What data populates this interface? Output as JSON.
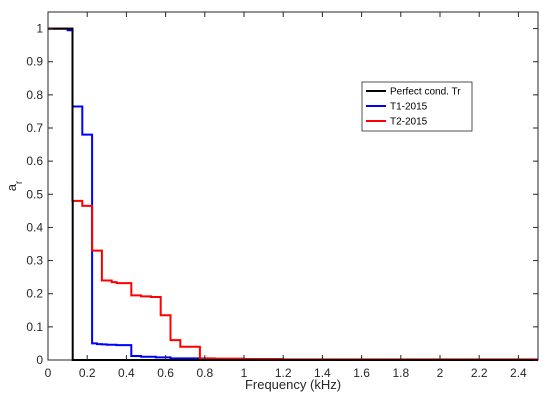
{
  "chart_data": {
    "type": "line",
    "step": true,
    "xlabel": "Frequency (kHz)",
    "ylabel_main": "a",
    "ylabel_sub": "r",
    "xlim": [
      0,
      2.5
    ],
    "ylim": [
      0,
      1.05
    ],
    "xticks": [
      0,
      0.2,
      0.4,
      0.6,
      0.8,
      1,
      1.2,
      1.4,
      1.6,
      1.8,
      2,
      2.2,
      2.4
    ],
    "xtick_labels": [
      "0",
      "0.2",
      "0.4",
      "0.6",
      "0.8",
      "1",
      "1.2",
      "1.4",
      "1.6",
      "1.8",
      "2",
      "2.2",
      "2.4"
    ],
    "yticks": [
      0,
      0.1,
      0.2,
      0.3,
      0.4,
      0.5,
      0.6,
      0.7,
      0.8,
      0.9,
      1
    ],
    "ytick_labels": [
      "0",
      "0.1",
      "0.2",
      "0.3",
      "0.4",
      "0.5",
      "0.6",
      "0.7",
      "0.8",
      "0.9",
      "1"
    ],
    "grid": false,
    "legend_position": "upper-right",
    "series": [
      {
        "name": "Perfect cond. Tr",
        "color": "#000000",
        "x": [
          0,
          0.125,
          0.125,
          0.126,
          0.126,
          2.5
        ],
        "y": [
          1,
          1,
          0.48,
          0.48,
          0,
          0
        ]
      },
      {
        "name": "T1-2015",
        "color": "#0000ff",
        "x": [
          0,
          0.1,
          0.1,
          0.125,
          0.125,
          0.175,
          0.175,
          0.225,
          0.225,
          0.25,
          0.25,
          0.275,
          0.275,
          0.3,
          0.3,
          0.35,
          0.35,
          0.425,
          0.425,
          0.475,
          0.475,
          0.55,
          0.55,
          0.625,
          0.625,
          0.775,
          0.775,
          1.0,
          1.0,
          2.5
        ],
        "y": [
          1,
          1,
          0.995,
          0.995,
          0.765,
          0.765,
          0.68,
          0.68,
          0.05,
          0.05,
          0.048,
          0.048,
          0.047,
          0.047,
          0.046,
          0.046,
          0.045,
          0.045,
          0.012,
          0.012,
          0.01,
          0.01,
          0.008,
          0.008,
          0.005,
          0.005,
          0.002,
          0.002,
          0.001,
          0.001
        ]
      },
      {
        "name": "T2-2015",
        "color": "#ff0000",
        "x": [
          0,
          0.125,
          0.125,
          0.175,
          0.175,
          0.225,
          0.225,
          0.275,
          0.275,
          0.325,
          0.325,
          0.35,
          0.35,
          0.425,
          0.425,
          0.475,
          0.475,
          0.525,
          0.525,
          0.575,
          0.575,
          0.625,
          0.625,
          0.675,
          0.675,
          0.775,
          0.775,
          0.85,
          0.85,
          1.0,
          1.0,
          1.2,
          1.2,
          2.5
        ],
        "y": [
          1,
          1,
          0.48,
          0.48,
          0.465,
          0.465,
          0.33,
          0.33,
          0.24,
          0.24,
          0.235,
          0.235,
          0.232,
          0.232,
          0.195,
          0.195,
          0.192,
          0.192,
          0.19,
          0.19,
          0.135,
          0.135,
          0.06,
          0.06,
          0.04,
          0.04,
          0.005,
          0.005,
          0.004,
          0.004,
          0.003,
          0.003,
          0.002,
          0.002
        ]
      }
    ]
  }
}
